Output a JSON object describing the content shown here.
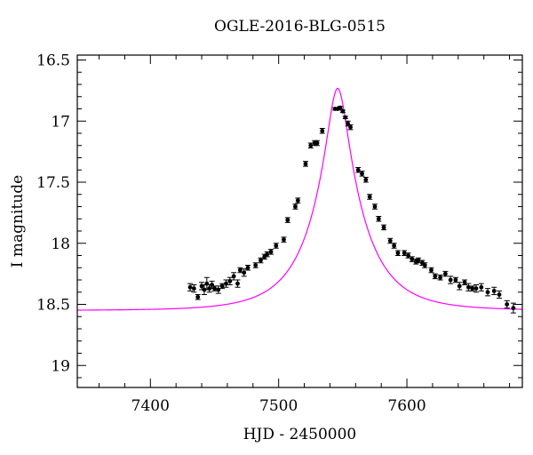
{
  "chart_data": {
    "type": "scatter",
    "title": "OGLE-2016-BLG-0515",
    "xlabel": "HJD - 2450000",
    "ylabel": "I magnitude",
    "xlim": [
      7343,
      7690
    ],
    "ylim": [
      19.18,
      16.46
    ],
    "y_inverted": true,
    "x_ticks": [
      7400,
      7500,
      7600
    ],
    "y_ticks": [
      16.5,
      17,
      17.5,
      18,
      18.5,
      19
    ],
    "y_tick_labels": [
      "16.5",
      "17",
      "17.5",
      "18",
      "18.5",
      "19"
    ],
    "x_tick_labels": [
      "7400",
      "7500",
      "7600"
    ],
    "grid": false,
    "colors": {
      "model": "#ff00ff",
      "points": "#000000"
    },
    "model": {
      "name": "",
      "type": "point-lens",
      "t0": 7546,
      "u0": 0.19,
      "tE": 40,
      "baseline": 18.55
    },
    "series": [
      {
        "x": [
          7431,
          7434,
          7437,
          7440,
          7442,
          7444,
          7446,
          7448,
          7450,
          7453,
          7456,
          7459,
          7462,
          7465,
          7468,
          7470,
          7473,
          7476,
          7482,
          7486,
          7489,
          7491,
          7494,
          7498,
          7504,
          7507,
          7513,
          7515,
          7521,
          7525,
          7528,
          7530,
          7534,
          7544,
          7546,
          7548,
          7550,
          7552,
          7554,
          7556,
          7562,
          7565,
          7568,
          7571,
          7575,
          7578,
          7582,
          7587,
          7590,
          7593,
          7598,
          7601,
          7604,
          7607,
          7609,
          7612,
          7614,
          7619,
          7622,
          7626,
          7630,
          7634,
          7638,
          7641,
          7645,
          7648,
          7651,
          7654,
          7658,
          7663,
          7668,
          7672,
          7678,
          7683
        ],
        "y": [
          18.36,
          18.37,
          18.44,
          18.35,
          18.38,
          18.33,
          18.37,
          18.34,
          18.37,
          18.38,
          18.35,
          18.33,
          18.31,
          18.27,
          18.33,
          18.22,
          18.24,
          18.2,
          18.18,
          18.14,
          18.11,
          18.09,
          18.07,
          18.02,
          17.97,
          17.81,
          17.7,
          17.65,
          17.35,
          17.2,
          17.18,
          17.18,
          17.08,
          16.9,
          16.9,
          16.89,
          16.92,
          16.97,
          17.02,
          17.05,
          17.4,
          17.43,
          17.48,
          17.62,
          17.7,
          17.8,
          17.87,
          17.98,
          18.02,
          18.08,
          18.08,
          18.1,
          18.13,
          18.15,
          18.14,
          18.16,
          18.18,
          18.22,
          18.27,
          18.28,
          18.25,
          18.3,
          18.3,
          18.35,
          18.32,
          18.36,
          18.37,
          18.37,
          18.36,
          18.4,
          18.39,
          18.42,
          18.5,
          18.53
        ],
        "err": [
          0.03,
          0.03,
          0.02,
          0.03,
          0.04,
          0.05,
          0.03,
          0.03,
          0.02,
          0.03,
          0.02,
          0.03,
          0.03,
          0.03,
          0.03,
          0.02,
          0.03,
          0.02,
          0.02,
          0.02,
          0.02,
          0.02,
          0.02,
          0.02,
          0.02,
          0.02,
          0.02,
          0.02,
          0.02,
          0.02,
          0.02,
          0.02,
          0.02,
          0.01,
          0.01,
          0.01,
          0.01,
          0.01,
          0.02,
          0.02,
          0.02,
          0.02,
          0.02,
          0.02,
          0.02,
          0.02,
          0.02,
          0.02,
          0.02,
          0.02,
          0.02,
          0.02,
          0.02,
          0.02,
          0.02,
          0.02,
          0.02,
          0.02,
          0.02,
          0.02,
          0.02,
          0.03,
          0.02,
          0.03,
          0.02,
          0.03,
          0.02,
          0.03,
          0.03,
          0.03,
          0.03,
          0.03,
          0.03,
          0.04
        ]
      }
    ]
  }
}
